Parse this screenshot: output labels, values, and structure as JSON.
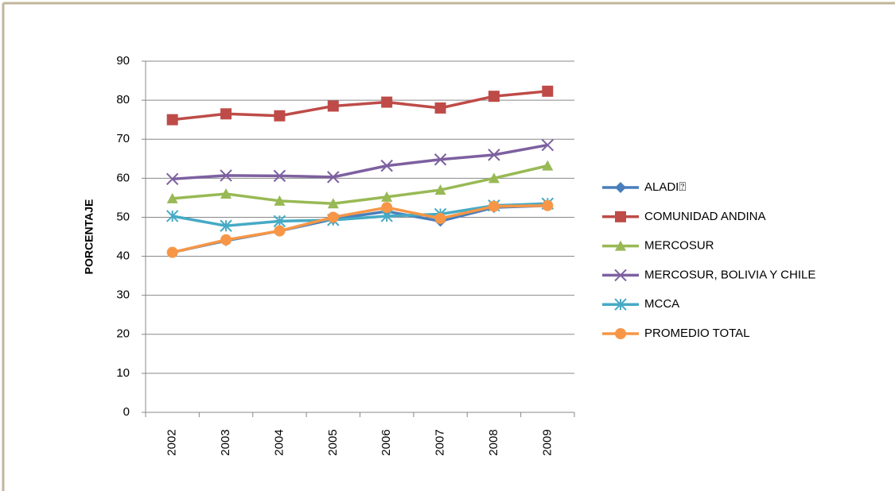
{
  "chart_data": {
    "type": "line",
    "y_label": "PORCENTAJE",
    "categories": [
      "2002",
      "2003",
      "2004",
      "2005",
      "2006",
      "2007",
      "2008",
      "2009"
    ],
    "series": [
      {
        "name": "ALADI⍰",
        "color": "#4a7ebb",
        "marker": "diamond",
        "values": [
          41,
          44,
          46.5,
          49.5,
          51.5,
          49,
          52.5,
          53
        ]
      },
      {
        "name": "COMUNIDAD ANDINA",
        "color": "#be4b48",
        "marker": "square",
        "values": [
          75,
          76.5,
          76,
          78.5,
          79.5,
          78,
          81,
          82.3
        ]
      },
      {
        "name": "MERCOSUR",
        "color": "#98b954",
        "marker": "triangle",
        "values": [
          54.8,
          56,
          54.2,
          53.5,
          55.2,
          57,
          60,
          63.2
        ]
      },
      {
        "name": "MERCOSUR, BOLIVIA Y CHILE",
        "color": "#7d60a0",
        "marker": "x",
        "values": [
          59.8,
          60.7,
          60.6,
          60.3,
          63.2,
          64.8,
          66,
          68.5
        ]
      },
      {
        "name": "MCCA",
        "color": "#46aac5",
        "marker": "star",
        "values": [
          50.3,
          47.8,
          49,
          49.3,
          50.3,
          50.8,
          53,
          53.5
        ]
      },
      {
        "name": "PROMEDIO TOTAL",
        "color": "#f79646",
        "marker": "circle",
        "values": [
          41,
          44.2,
          46.5,
          50,
          52.5,
          49.7,
          52.8,
          53
        ]
      }
    ],
    "ylim": [
      0,
      90
    ],
    "yticks": [
      0,
      10,
      20,
      30,
      40,
      50,
      60,
      70,
      80,
      90
    ],
    "grid": true,
    "legend": "right"
  }
}
